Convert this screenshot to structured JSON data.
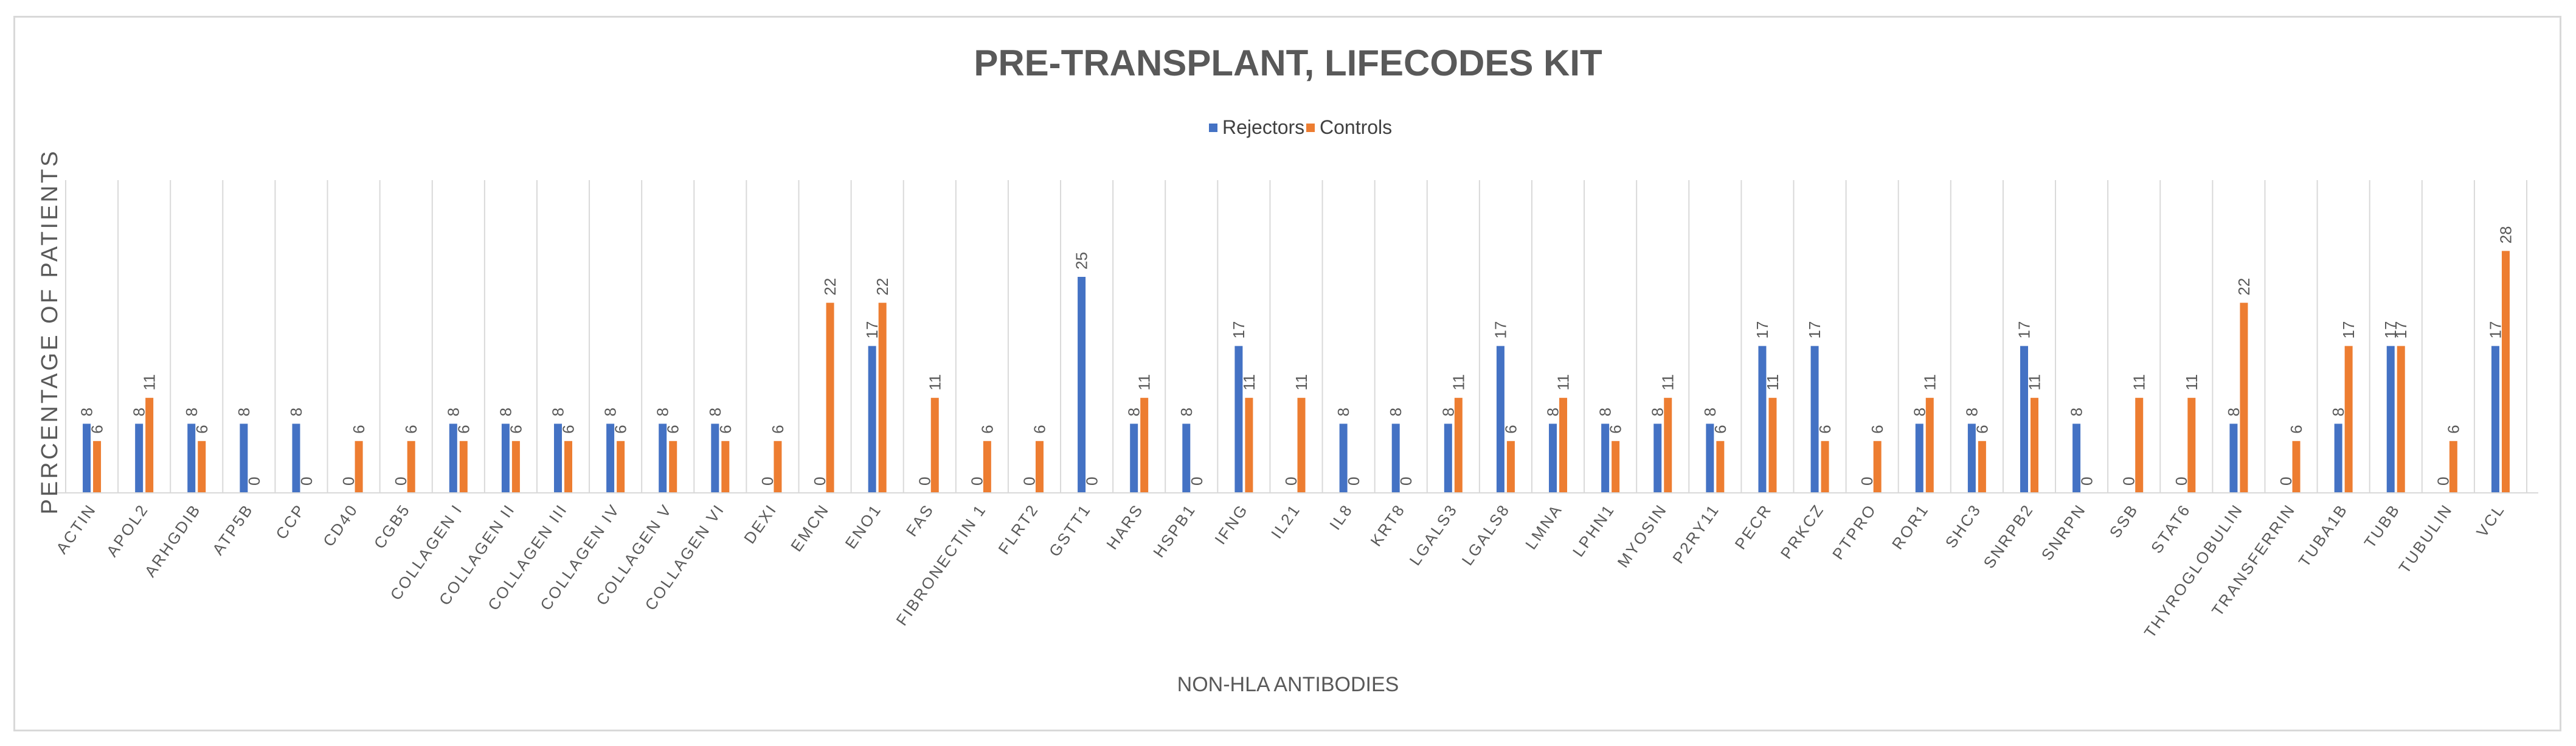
{
  "chart_data": {
    "type": "bar",
    "title": "PRE-TRANSPLANT, LIFECODES KIT",
    "xlabel": "NON-HLA ANTIBODIES",
    "ylabel": "PERCENTAGE OF PATIENTS",
    "ylim": [
      0,
      30
    ],
    "legend_position": "top-center",
    "categories": [
      "ACTIN",
      "APOL2",
      "ARHGDIB",
      "ATP5B",
      "CCP",
      "CD40",
      "CGB5",
      "COLLAGEN I",
      "COLLAGEN II",
      "COLLAGEN III",
      "COLLAGEN IV",
      "COLLAGEN V",
      "COLLAGEN VI",
      "DEXI",
      "EMCN",
      "ENO1",
      "FAS",
      "FIBRONECTIN 1",
      "FLRT2",
      "GSTT1",
      "HARS",
      "HSPB1",
      "IFNG",
      "IL21",
      "IL8",
      "KRT8",
      "LGALS3",
      "LGALS8",
      "LMNA",
      "LPHN1",
      "MYOSIN",
      "P2RY11",
      "PECR",
      "PRKCZ",
      "PTPRO",
      "ROR1",
      "SHC3",
      "SNRPB2",
      "SNRPN",
      "SSB",
      "STAT6",
      "THYROGLOBULIN",
      "TRANSFERRIN",
      "TUBA1B",
      "TUBB",
      "TUBULIN",
      "VCL"
    ],
    "series": [
      {
        "name": "Rejectors",
        "color": "#4472c4",
        "values": [
          8,
          8,
          8,
          8,
          8,
          0,
          0,
          8,
          8,
          8,
          8,
          8,
          8,
          0,
          0,
          17,
          0,
          0,
          0,
          25,
          8,
          8,
          17,
          0,
          8,
          8,
          8,
          17,
          8,
          8,
          8,
          8,
          17,
          17,
          0,
          8,
          8,
          17,
          8,
          0,
          0,
          8,
          0,
          8,
          17,
          0,
          17
        ]
      },
      {
        "name": "Controls",
        "color": "#ed7d31",
        "values": [
          6,
          11,
          6,
          0,
          0,
          6,
          6,
          6,
          6,
          6,
          6,
          6,
          6,
          6,
          22,
          22,
          11,
          6,
          6,
          0,
          11,
          0,
          11,
          11,
          0,
          0,
          11,
          6,
          11,
          6,
          11,
          6,
          11,
          6,
          6,
          11,
          6,
          11,
          0,
          11,
          11,
          22,
          6,
          17,
          17,
          6,
          28
        ]
      }
    ]
  }
}
